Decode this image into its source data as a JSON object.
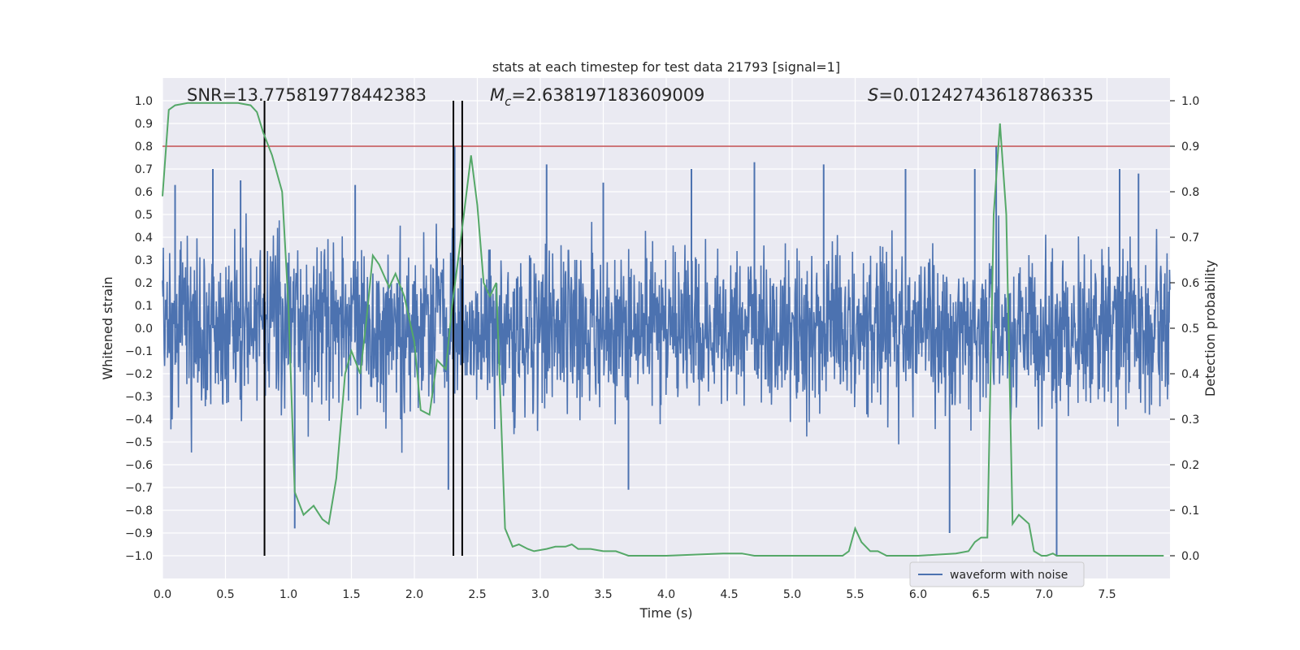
{
  "chart_data": {
    "type": "line",
    "title": "stats at each timestep for test data 21793 [signal=1]",
    "xlabel": "Time (s)",
    "ylabel": "Whitened strain",
    "y2label": "Detection probability",
    "xlim": [
      0.0,
      8.0
    ],
    "ylim": [
      -1.1,
      1.1
    ],
    "y2lim": [
      -0.05,
      1.05
    ],
    "xticks": [
      "0.0",
      "0.5",
      "1.0",
      "1.5",
      "2.0",
      "2.5",
      "3.0",
      "3.5",
      "4.0",
      "4.5",
      "5.0",
      "5.5",
      "6.0",
      "6.5",
      "7.0",
      "7.5"
    ],
    "xtick_values": [
      0.0,
      0.5,
      1.0,
      1.5,
      2.0,
      2.5,
      3.0,
      3.5,
      4.0,
      4.5,
      5.0,
      5.5,
      6.0,
      6.5,
      7.0,
      7.5
    ],
    "yticks": [
      "1.0",
      "0.9",
      "0.8",
      "0.7",
      "0.6",
      "0.5",
      "0.4",
      "0.3",
      "0.2",
      "0.1",
      "0.0",
      "-0.1",
      "-0.2",
      "-0.3",
      "-0.4",
      "-0.5",
      "-0.6",
      "-0.7",
      "-0.8",
      "-0.9",
      "-1.0"
    ],
    "ytick_values": [
      1.0,
      0.9,
      0.8,
      0.7,
      0.6,
      0.5,
      0.4,
      0.3,
      0.2,
      0.1,
      0.0,
      -0.1,
      -0.2,
      -0.3,
      -0.4,
      -0.5,
      -0.6,
      -0.7,
      -0.8,
      -0.9,
      -1.0
    ],
    "y2ticks": [
      "1.0",
      "0.9",
      "0.8",
      "0.7",
      "0.6",
      "0.5",
      "0.4",
      "0.3",
      "0.2",
      "0.1",
      "0.0"
    ],
    "y2tick_values": [
      1.0,
      0.9,
      0.8,
      0.7,
      0.6,
      0.5,
      0.4,
      0.3,
      0.2,
      0.1,
      0.0
    ],
    "grid": true,
    "legend": {
      "placement": "lower-right",
      "entries": [
        "waveform with noise"
      ]
    },
    "annotations": {
      "snr": "SNR=13.775819778442383",
      "mc_symbol": "M",
      "mc_sub": "c",
      "mc_value": "=2.638197183609009",
      "s_symbol": "S",
      "s_value": "=0.01242743618786335"
    },
    "threshold": {
      "axis": "y2",
      "value": 0.9,
      "color": "#c44e52"
    },
    "vlines": [
      0.81,
      2.31,
      2.38
    ],
    "waveform": {
      "name": "waveform with noise",
      "color": "#4c72b0",
      "x_range": [
        0.0,
        8.0
      ],
      "typical_amplitude": 0.42,
      "peaks": [
        {
          "x": 0.1,
          "y": 0.63
        },
        {
          "x": 0.4,
          "y": 0.7
        },
        {
          "x": 0.62,
          "y": 0.65
        },
        {
          "x": 1.05,
          "y": -0.88
        },
        {
          "x": 1.53,
          "y": 0.63
        },
        {
          "x": 2.32,
          "y": 0.8
        },
        {
          "x": 2.27,
          "y": -0.71
        },
        {
          "x": 3.05,
          "y": 0.72
        },
        {
          "x": 3.5,
          "y": 0.64
        },
        {
          "x": 3.7,
          "y": -0.71
        },
        {
          "x": 4.2,
          "y": 0.7
        },
        {
          "x": 4.7,
          "y": 0.73
        },
        {
          "x": 5.25,
          "y": 0.72
        },
        {
          "x": 5.9,
          "y": 0.7
        },
        {
          "x": 6.25,
          "y": -0.9
        },
        {
          "x": 6.45,
          "y": 0.7
        },
        {
          "x": 6.62,
          "y": 0.8
        },
        {
          "x": 7.1,
          "y": -1.0
        },
        {
          "x": 7.6,
          "y": 0.7
        },
        {
          "x": 7.75,
          "y": 0.68
        }
      ]
    },
    "series": [
      {
        "axis": "y2",
        "color": "#55a868",
        "x": [
          0.0,
          0.05,
          0.1,
          0.2,
          0.3,
          0.4,
          0.5,
          0.6,
          0.7,
          0.75,
          0.8,
          0.87,
          0.95,
          1.0,
          1.05,
          1.12,
          1.2,
          1.27,
          1.32,
          1.38,
          1.45,
          1.5,
          1.57,
          1.62,
          1.67,
          1.72,
          1.8,
          1.85,
          1.92,
          2.0,
          2.05,
          2.12,
          2.18,
          2.25,
          2.3,
          2.38,
          2.45,
          2.5,
          2.55,
          2.6,
          2.65,
          2.72,
          2.78,
          2.83,
          2.9,
          2.95,
          3.05,
          3.12,
          3.2,
          3.25,
          3.3,
          3.4,
          3.5,
          3.6,
          3.7,
          4.0,
          4.45,
          4.5,
          4.6,
          4.7,
          4.9,
          5.0,
          5.2,
          5.4,
          5.45,
          5.5,
          5.55,
          5.62,
          5.68,
          5.75,
          5.85,
          6.0,
          6.3,
          6.4,
          6.45,
          6.5,
          6.55,
          6.6,
          6.65,
          6.7,
          6.75,
          6.8,
          6.88,
          6.92,
          6.98,
          7.02,
          7.07,
          7.1,
          7.3,
          7.5,
          7.95
        ],
        "y": [
          0.79,
          0.98,
          0.99,
          0.995,
          0.995,
          0.995,
          0.995,
          0.995,
          0.99,
          0.975,
          0.93,
          0.88,
          0.8,
          0.55,
          0.14,
          0.09,
          0.11,
          0.08,
          0.07,
          0.17,
          0.4,
          0.45,
          0.4,
          0.52,
          0.66,
          0.64,
          0.59,
          0.62,
          0.57,
          0.47,
          0.32,
          0.31,
          0.43,
          0.41,
          0.55,
          0.72,
          0.88,
          0.77,
          0.6,
          0.57,
          0.6,
          0.06,
          0.02,
          0.025,
          0.015,
          0.01,
          0.015,
          0.02,
          0.02,
          0.025,
          0.015,
          0.015,
          0.01,
          0.01,
          0.0,
          0.0,
          0.005,
          0.005,
          0.005,
          0.0,
          0.0,
          0.0,
          0.0,
          0.0,
          0.01,
          0.06,
          0.03,
          0.01,
          0.01,
          0.0,
          0.0,
          0.0,
          0.005,
          0.01,
          0.03,
          0.04,
          0.04,
          0.75,
          0.95,
          0.75,
          0.07,
          0.09,
          0.07,
          0.01,
          0.0,
          0.0,
          0.005,
          0.0,
          0.0,
          0.0,
          0.0
        ]
      }
    ]
  }
}
